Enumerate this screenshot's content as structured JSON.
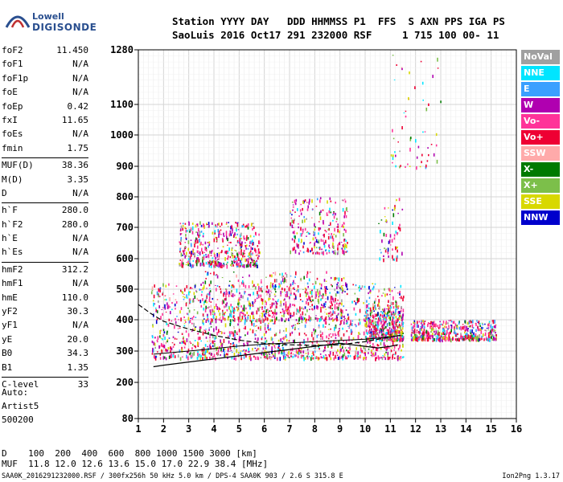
{
  "logo": {
    "line1": "Lowell",
    "line2": "DIGISONDE"
  },
  "header": {
    "line1": "Station YYYY DAY   DDD HHMMSS P1  FFS  S AXN PPS IGA PS",
    "line2": "SaoLuis 2016 Oct17 291 232000 RSF     1 715 100 00- 11"
  },
  "params": [
    [
      {
        "k": "foF2",
        "v": "11.450"
      },
      {
        "k": "foF1",
        "v": "N/A"
      },
      {
        "k": "foF1p",
        "v": "N/A"
      },
      {
        "k": "foE",
        "v": "N/A"
      },
      {
        "k": "foEp",
        "v": "0.42"
      },
      {
        "k": "fxI",
        "v": "11.65"
      },
      {
        "k": "foEs",
        "v": "N/A"
      },
      {
        "k": "fmin",
        "v": "1.75"
      }
    ],
    [
      {
        "k": "MUF(D)",
        "v": "38.36"
      },
      {
        "k": "M(D)",
        "v": "3.35"
      },
      {
        "k": "D",
        "v": "N/A"
      }
    ],
    [
      {
        "k": "h`F",
        "v": "280.0"
      },
      {
        "k": "h`F2",
        "v": "280.0"
      },
      {
        "k": "h`E",
        "v": "N/A"
      },
      {
        "k": "h`Es",
        "v": "N/A"
      }
    ],
    [
      {
        "k": "hmF2",
        "v": "312.2"
      },
      {
        "k": "hmF1",
        "v": "N/A"
      },
      {
        "k": "hmE",
        "v": "110.0"
      },
      {
        "k": "yF2",
        "v": "30.3"
      },
      {
        "k": "yF1",
        "v": "N/A"
      },
      {
        "k": "yE",
        "v": "20.0"
      },
      {
        "k": "B0",
        "v": "34.3"
      },
      {
        "k": "B1",
        "v": "1.35"
      }
    ],
    [
      {
        "k": "C-level",
        "v": "33"
      }
    ]
  ],
  "auto": {
    "line1": "Auto:",
    "line2": "Artist5",
    "line3": "500200"
  },
  "freq_table": {
    "line1": "D    100  200  400  600  800 1000 1500 3000 [km]",
    "line2": "MUF  11.8 12.0 12.6 13.6 15.0 17.0 22.9 38.4 [MHz]"
  },
  "footer": {
    "left": "SAA0K_2016291232000.RSF / 300fx256h 50 kHz 5.0 km / DPS-4 SAA0K 903 / 2.6 S 315.8 E",
    "right": "Ion2Png 1.3.17"
  },
  "legend": [
    {
      "label": "NoVal",
      "color": "#a0a0a0"
    },
    {
      "label": "NNE",
      "color": "#00e5ff"
    },
    {
      "label": "E",
      "color": "#3aa0ff"
    },
    {
      "label": "W",
      "color": "#b000b0"
    },
    {
      "label": "Vo-",
      "color": "#ff3399"
    },
    {
      "label": "Vo+",
      "color": "#ee0033"
    },
    {
      "label": "SSW",
      "color": "#ffaaaa"
    },
    {
      "label": "X-",
      "color": "#007a00"
    },
    {
      "label": "X+",
      "color": "#7cbf4a"
    },
    {
      "label": "SSE",
      "color": "#d8d800"
    },
    {
      "label": "NNW",
      "color": "#0000cc"
    }
  ],
  "chart_data": {
    "type": "scatter",
    "x_ticks": [
      1,
      2,
      3,
      4,
      5,
      6,
      7,
      8,
      9,
      10,
      11,
      12,
      13,
      14,
      15,
      16
    ],
    "y_ticks": [
      80,
      200,
      300,
      400,
      500,
      600,
      700,
      800,
      900,
      1000,
      1100,
      1280
    ],
    "xlim": [
      1,
      16
    ],
    "ylim": [
      80,
      1280
    ],
    "y_scale": "nonlinear (compressed toward top)",
    "grid": true,
    "traces": {
      "ordinary_trace_lower": {
        "x": [
          1.6,
          2,
          3,
          4,
          5,
          6,
          7,
          8,
          9,
          10,
          10.5,
          11,
          11.3
        ],
        "y": [
          250,
          255,
          265,
          275,
          285,
          295,
          305,
          315,
          325,
          315,
          310,
          315,
          320
        ]
      },
      "profile_curve": {
        "x": [
          1.0,
          1.5,
          2,
          3,
          4,
          5,
          6,
          7,
          8,
          9,
          10,
          11,
          11.4
        ],
        "y": [
          450,
          420,
          395,
          370,
          350,
          335,
          325,
          320,
          318,
          320,
          330,
          345,
          350
        ]
      },
      "fitted_trace": {
        "x": [
          1.6,
          2,
          3,
          4,
          5,
          6,
          7,
          8,
          9,
          10,
          11,
          11.4
        ],
        "y": [
          290,
          293,
          300,
          308,
          316,
          322,
          326,
          330,
          334,
          338,
          345,
          350
        ]
      }
    },
    "clusters": [
      {
        "x": [
          1.5,
          11.5
        ],
        "y": [
          280,
          520
        ],
        "count": 1400
      },
      {
        "x": [
          2.6,
          5.8
        ],
        "y": [
          580,
          720
        ],
        "count": 500
      },
      {
        "x": [
          7.0,
          9.3
        ],
        "y": [
          620,
          800
        ],
        "count": 250
      },
      {
        "x": [
          3.5,
          9.3
        ],
        "y": [
          400,
          560
        ],
        "count": 500
      },
      {
        "x": [
          10.0,
          11.5
        ],
        "y": [
          340,
          450
        ],
        "count": 400
      },
      {
        "x": [
          11.8,
          15.2
        ],
        "y": [
          340,
          400
        ],
        "count": 500
      },
      {
        "x": [
          10.5,
          11.5
        ],
        "y": [
          600,
          800
        ],
        "count": 60
      },
      {
        "x": [
          11,
          13
        ],
        "y": [
          900,
          1280
        ],
        "count": 60
      }
    ]
  }
}
